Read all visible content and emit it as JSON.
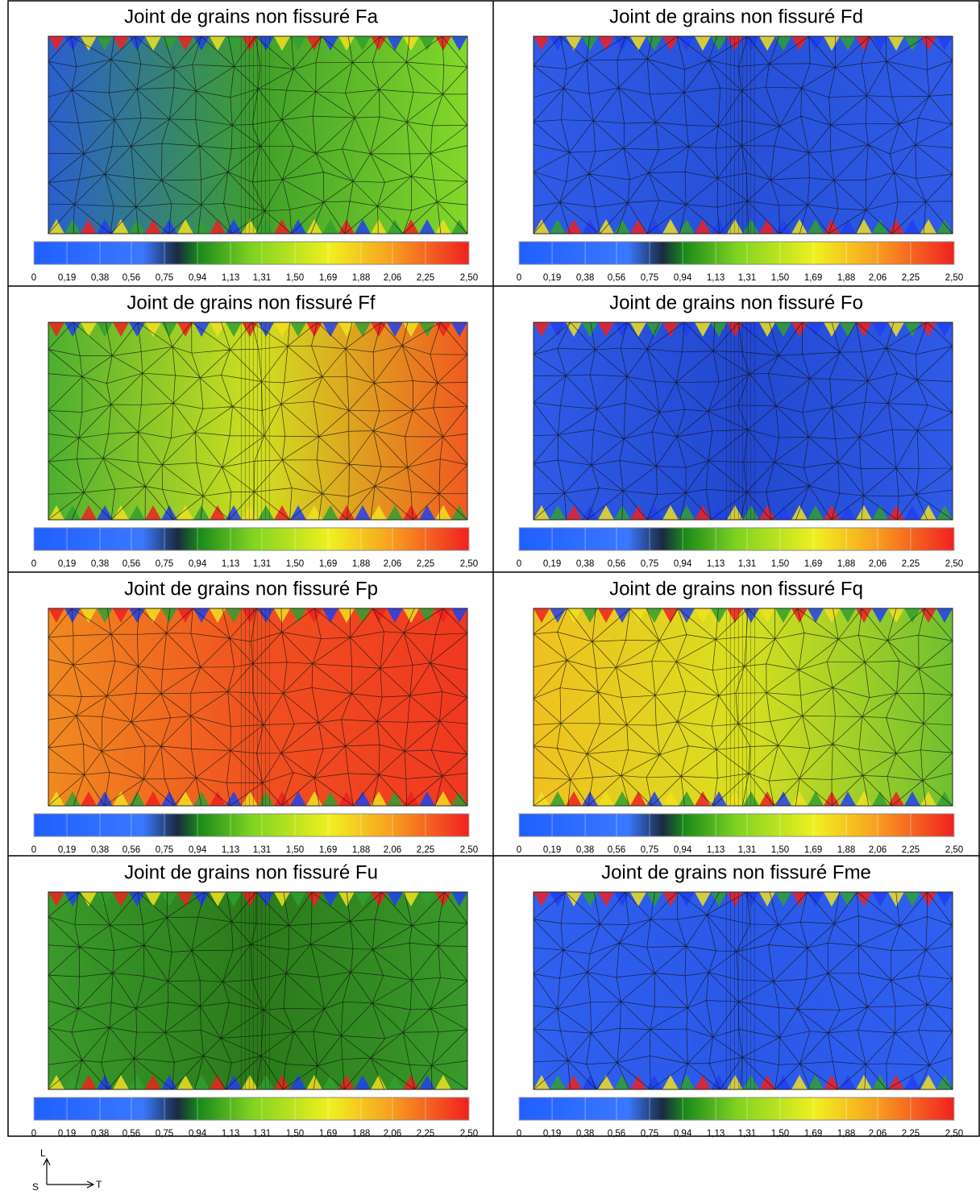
{
  "panels": [
    {
      "title": "Joint de grains non fissuré Fa",
      "colors": [
        "#2a5fd0",
        "#3fa02a",
        "#84d82a"
      ]
    },
    {
      "title": "Joint de grains non fissuré Fd",
      "colors": [
        "#2f5be8",
        "#2650d8",
        "#2f5be8"
      ]
    },
    {
      "title": "Joint de grains non fissuré Ff",
      "colors": [
        "#4caf30",
        "#d0e020",
        "#f05a20"
      ]
    },
    {
      "title": "Joint de grains non fissuré Fo",
      "colors": [
        "#2f5be8",
        "#2248d0",
        "#2f5be8"
      ]
    },
    {
      "title": "Joint de grains non fissuré Fp",
      "colors": [
        "#f08a20",
        "#f05020",
        "#f03820"
      ]
    },
    {
      "title": "Joint de grains non fissuré Fq",
      "colors": [
        "#f0c020",
        "#d8e020",
        "#70c030"
      ]
    },
    {
      "title": "Joint de grains non fissuré Fu",
      "colors": [
        "#3a9a2a",
        "#2a7a1a",
        "#3a9a2a"
      ]
    },
    {
      "title": "Joint de grains non fissuré Fme",
      "colors": [
        "#3060f0",
        "#2a58e8",
        "#3060f0"
      ]
    }
  ],
  "colorbar": {
    "range": [
      0,
      2.5
    ],
    "colors": [
      "#1f5fff",
      "#3a78ff",
      "#1a2a40",
      "#1a8a1a",
      "#7ed321",
      "#f0f020",
      "#f8a020",
      "#f02020"
    ],
    "ticks": [
      0,
      {
        "value": 0.19,
        "label": "0,19"
      },
      {
        "value": 0.38,
        "label": "0,38"
      },
      {
        "value": 0.56,
        "label": "0,56"
      },
      {
        "value": 0.75,
        "label": "0,75"
      },
      {
        "value": 0.94,
        "label": "0,94"
      },
      {
        "value": 1.13,
        "label": "1,13"
      },
      {
        "value": 1.31,
        "label": "1,31"
      },
      {
        "value": 1.5,
        "label": "1,50"
      },
      {
        "value": 1.69,
        "label": "1,69"
      },
      {
        "value": 1.88,
        "label": "1,88"
      },
      {
        "value": 2.06,
        "label": "2,06"
      },
      {
        "value": 2.25,
        "label": "2,25"
      },
      {
        "value": 2.5,
        "label": "2,50"
      }
    ]
  },
  "axes": {
    "vertical": "L",
    "origin": "S",
    "horizontal": "T"
  }
}
